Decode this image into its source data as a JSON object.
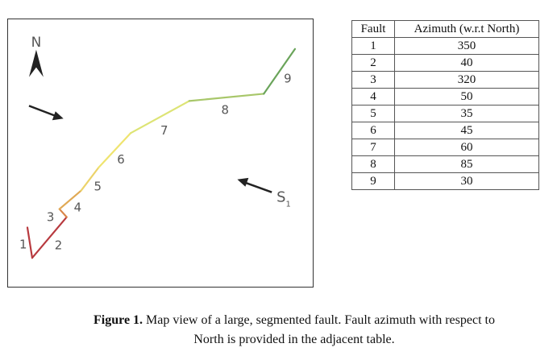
{
  "map": {
    "north_label": "N",
    "stress_label": "S",
    "stress_subscript": "1",
    "segment_labels": [
      "1",
      "2",
      "3",
      "4",
      "5",
      "6",
      "7",
      "8",
      "9"
    ],
    "segment_colors": [
      "#b83a3f",
      "#b83a3f",
      "#d9864a",
      "#e0a955",
      "#ecd36a",
      "#efe46f",
      "#dde475",
      "#a8c76a",
      "#6aa45a"
    ]
  },
  "table": {
    "headers": [
      "Fault",
      "Azimuth (w.r.t North)"
    ],
    "rows": [
      [
        "1",
        "350"
      ],
      [
        "2",
        "40"
      ],
      [
        "3",
        "320"
      ],
      [
        "4",
        "50"
      ],
      [
        "5",
        "35"
      ],
      [
        "6",
        "45"
      ],
      [
        "7",
        "60"
      ],
      [
        "8",
        "85"
      ],
      [
        "9",
        "30"
      ]
    ]
  },
  "caption": {
    "bold": "Figure 1.",
    "line1": " Map view of a large, segmented fault. Fault azimuth with respect to",
    "line2": "North is provided in the adjacent table."
  }
}
